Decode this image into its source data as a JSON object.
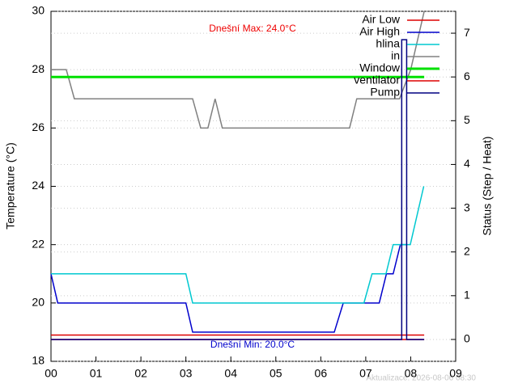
{
  "chart_data": {
    "type": "line",
    "y_label": "Temperature (°C)",
    "y2_label": "Status (Step / Heat)",
    "annotations": [
      "Dnešní Max: 24.0°C",
      "Dnešní Min: 20.0°C",
      "Aktualizace: 2026-08-06 08:30"
    ],
    "xlim": [
      0,
      9
    ],
    "xticks": [
      {
        "value": 0,
        "label": "00"
      },
      {
        "value": 1,
        "label": "01"
      },
      {
        "value": 2,
        "label": "02"
      },
      {
        "value": 3,
        "label": "03"
      },
      {
        "value": 4,
        "label": "04"
      },
      {
        "value": 5,
        "label": "05"
      },
      {
        "value": 6,
        "label": "06"
      },
      {
        "value": 7,
        "label": "07"
      },
      {
        "value": 8,
        "label": "08"
      },
      {
        "value": 9,
        "label": "09"
      }
    ],
    "ylim": [
      18,
      30
    ],
    "yticks": [
      18,
      20,
      22,
      24,
      26,
      28,
      30
    ],
    "y2lim": [
      -0.5,
      7.5
    ],
    "y2ticks": [
      0,
      1,
      2,
      3,
      4,
      5,
      6,
      7
    ],
    "grid": true,
    "legend": "top-right",
    "series": [
      {
        "name": "Air Low",
        "color": "#dd0000",
        "x": [
          0,
          8.3
        ],
        "values": [
          18.9,
          18.9
        ]
      },
      {
        "name": "Air High",
        "color": "#0000cc",
        "x": [
          0,
          0.15,
          3.0,
          3.15,
          6.3,
          6.5,
          7.3,
          7.46,
          7.61,
          7.77,
          7.9
        ],
        "values": [
          21,
          20,
          20,
          19,
          19,
          20,
          20,
          21,
          21,
          22,
          22
        ]
      },
      {
        "name": "hlina",
        "color": "#00c8d0",
        "x": [
          0,
          3.0,
          3.15,
          6.96,
          7.14,
          7.45,
          7.61,
          7.99,
          8.29
        ],
        "values": [
          21,
          21,
          20,
          20,
          21,
          21,
          22,
          22,
          24
        ]
      },
      {
        "name": "in",
        "color": "#808080",
        "x": [
          0,
          0.34,
          0.52,
          3.15,
          3.33,
          3.49,
          3.65,
          3.81,
          6.64,
          6.8,
          7.75,
          8.0,
          8.3
        ],
        "values": [
          28,
          28,
          27,
          27,
          26,
          26,
          27,
          26,
          26,
          27,
          27,
          28,
          30
        ]
      },
      {
        "name": "Window",
        "color": "#00e000",
        "axis": "y2",
        "x": [
          0,
          8.3
        ],
        "values": [
          6,
          6
        ]
      },
      {
        "name": "ventilator",
        "color": "#dd0000",
        "axis": "y2",
        "x": [
          0,
          8.3
        ],
        "values": [
          0,
          0
        ]
      },
      {
        "name": "Pump",
        "color": "#000080",
        "axis": "y2",
        "x": [
          0,
          7.8,
          7.8,
          7.91,
          7.91,
          8.3
        ],
        "values": [
          0,
          0,
          6.85,
          6.85,
          0,
          0
        ]
      }
    ]
  }
}
